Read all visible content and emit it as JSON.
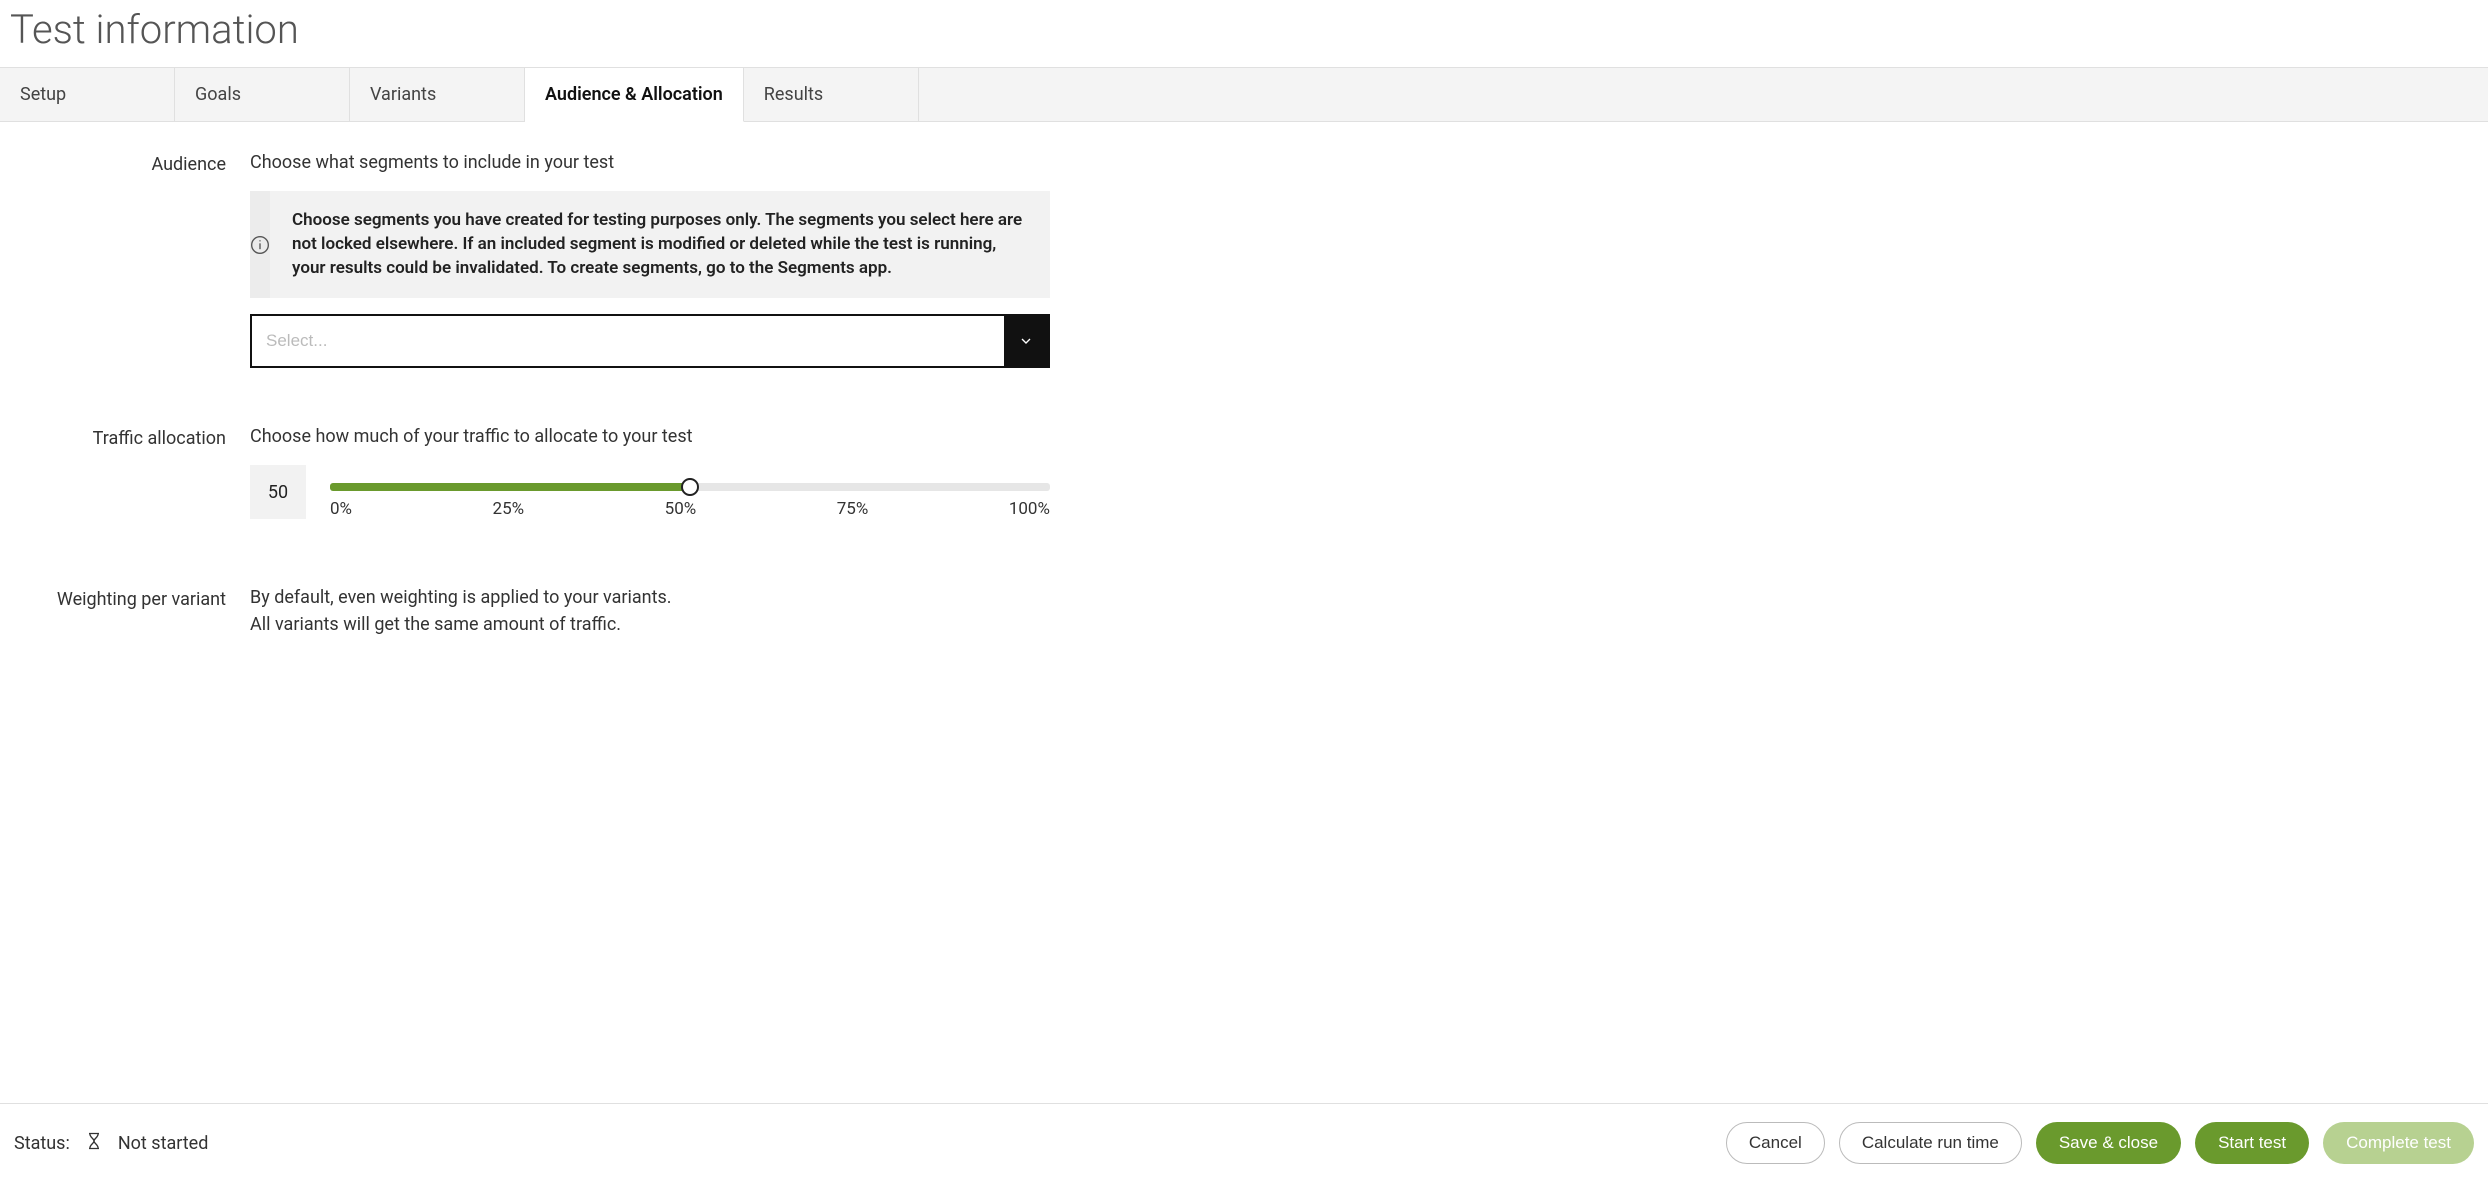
{
  "page_title": "Test information",
  "tabs": {
    "setup": "Setup",
    "goals": "Goals",
    "variants": "Variants",
    "audience": "Audience & Allocation",
    "results": "Results",
    "active": "audience"
  },
  "audience": {
    "label": "Audience",
    "description": "Choose what segments to include in your test",
    "info": "Choose segments you have created for testing purposes only. The segments you select here are not locked elsewhere. If an included segment is modified or deleted while the test is running, your results could be invalidated. To create segments, go to the Segments app.",
    "select_placeholder": "Select..."
  },
  "traffic": {
    "label": "Traffic allocation",
    "description": "Choose how much of your traffic to allocate to your test",
    "value": "50",
    "percent": 50,
    "ticks": {
      "t0": "0%",
      "t25": "25%",
      "t50": "50%",
      "t75": "75%",
      "t100": "100%"
    }
  },
  "weighting": {
    "label": "Weighting per variant",
    "line1": "By default, even weighting is applied to your variants.",
    "line2": "All variants will get the same amount of traffic."
  },
  "footer": {
    "status_label": "Status:",
    "status_value": "Not started",
    "cancel": "Cancel",
    "calc": "Calculate run time",
    "save": "Save & close",
    "start": "Start test",
    "complete": "Complete test"
  },
  "colors": {
    "accent": "#6a9a2d",
    "accent_light": "#b7d191"
  }
}
